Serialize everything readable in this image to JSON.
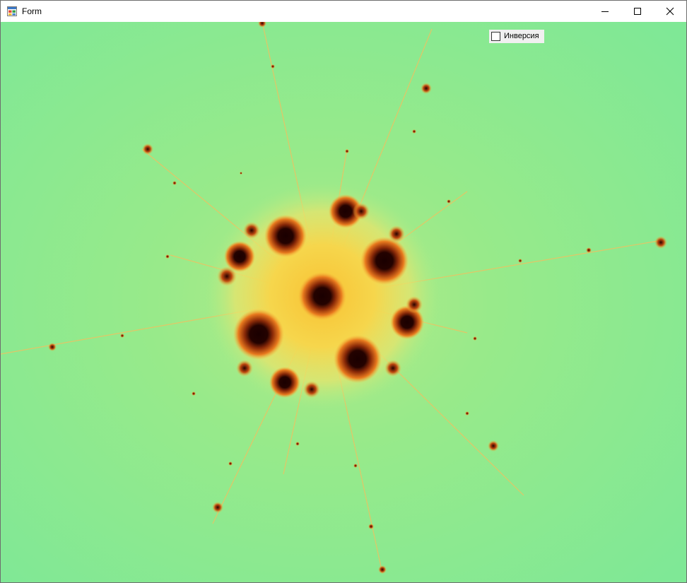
{
  "window": {
    "title": "Form",
    "icon": "winforms-app-icon",
    "controls": {
      "minimize_icon": "minimize-icon",
      "maximize_icon": "maximize-icon",
      "close_icon": "close-icon"
    }
  },
  "client": {
    "background_color": "#83e893",
    "fractal": {
      "kind": "julia-set",
      "outer_color": "#83e893",
      "glow_color": "#f6d64c",
      "core_color": "#e87a1e",
      "interior_color": "#1a0000"
    },
    "inversion_checkbox": {
      "label": "Инверсия",
      "checked": false
    }
  }
}
